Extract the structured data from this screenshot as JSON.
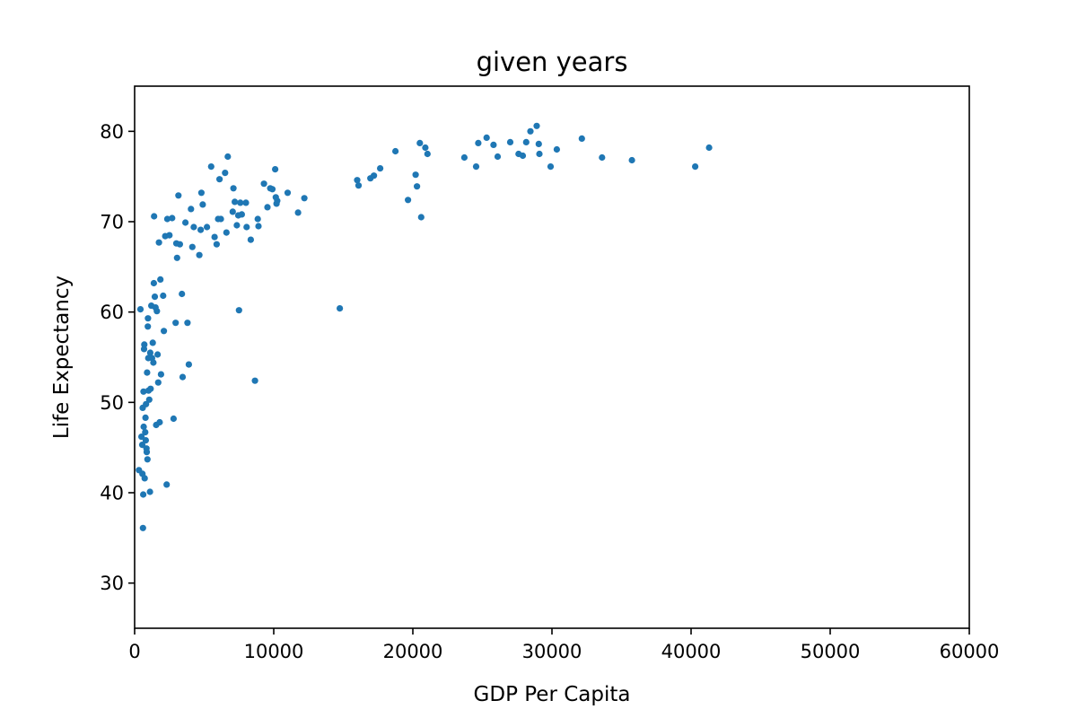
{
  "chart_data": {
    "type": "scatter",
    "title": "given years",
    "xlabel": "GDP Per Capita",
    "ylabel": "Life Expectancy",
    "xlim": [
      0,
      60000
    ],
    "ylim": [
      25,
      85
    ],
    "xticks": [
      0,
      10000,
      20000,
      30000,
      40000,
      50000,
      60000
    ],
    "xtick_labels": [
      "0",
      "10000",
      "20000",
      "30000",
      "40000",
      "50000",
      "60000"
    ],
    "yticks": [
      30,
      40,
      50,
      60,
      70,
      80
    ],
    "ytick_labels": [
      "30",
      "40",
      "50",
      "60",
      "70",
      "80"
    ],
    "grid": false,
    "legend": false,
    "point_color": "#1f77b4",
    "series": [
      {
        "points": [
          [
            310,
            42.5
          ],
          [
            420,
            60.3
          ],
          [
            490,
            46.2
          ],
          [
            550,
            45.3
          ],
          [
            560,
            42.1
          ],
          [
            580,
            49.4
          ],
          [
            600,
            36.1
          ],
          [
            620,
            39.8
          ],
          [
            640,
            51.2
          ],
          [
            650,
            47.3
          ],
          [
            680,
            55.9
          ],
          [
            700,
            56.4
          ],
          [
            720,
            41.6
          ],
          [
            760,
            46.7
          ],
          [
            780,
            48.3
          ],
          [
            800,
            45.8
          ],
          [
            820,
            49.8
          ],
          [
            850,
            44.9
          ],
          [
            870,
            44.5
          ],
          [
            900,
            53.3
          ],
          [
            920,
            43.7
          ],
          [
            950,
            58.4
          ],
          [
            960,
            59.3
          ],
          [
            980,
            54.9
          ],
          [
            1000,
            51.3
          ],
          [
            1050,
            50.3
          ],
          [
            1100,
            40.1
          ],
          [
            1120,
            55.5
          ],
          [
            1150,
            51.5
          ],
          [
            1200,
            60.7
          ],
          [
            1250,
            54.9
          ],
          [
            1300,
            56.6
          ],
          [
            1350,
            54.4
          ],
          [
            1380,
            63.2
          ],
          [
            1400,
            70.6
          ],
          [
            1450,
            61.7
          ],
          [
            1500,
            60.5
          ],
          [
            1550,
            47.5
          ],
          [
            1600,
            60.1
          ],
          [
            1650,
            55.3
          ],
          [
            1700,
            52.2
          ],
          [
            1750,
            67.7
          ],
          [
            1800,
            47.8
          ],
          [
            1850,
            63.6
          ],
          [
            1900,
            53.1
          ],
          [
            2050,
            61.8
          ],
          [
            2100,
            57.9
          ],
          [
            2200,
            68.4
          ],
          [
            2300,
            40.9
          ],
          [
            2350,
            70.3
          ],
          [
            2500,
            68.5
          ],
          [
            2700,
            70.4
          ],
          [
            2800,
            48.2
          ],
          [
            2950,
            58.8
          ],
          [
            3000,
            67.6
          ],
          [
            3050,
            66.0
          ],
          [
            3150,
            72.9
          ],
          [
            3250,
            67.5
          ],
          [
            3400,
            62.0
          ],
          [
            3450,
            52.8
          ],
          [
            3650,
            69.9
          ],
          [
            3800,
            58.8
          ],
          [
            3900,
            54.2
          ],
          [
            4050,
            71.4
          ],
          [
            4150,
            67.2
          ],
          [
            4250,
            69.4
          ],
          [
            4650,
            66.3
          ],
          [
            4750,
            69.1
          ],
          [
            4800,
            73.2
          ],
          [
            4900,
            71.9
          ],
          [
            5200,
            69.4
          ],
          [
            5500,
            76.1
          ],
          [
            5750,
            68.3
          ],
          [
            5900,
            67.5
          ],
          [
            6000,
            70.3
          ],
          [
            6100,
            74.7
          ],
          [
            6200,
            70.3
          ],
          [
            6500,
            75.4
          ],
          [
            6600,
            68.8
          ],
          [
            6700,
            77.2
          ],
          [
            7050,
            71.1
          ],
          [
            7100,
            73.7
          ],
          [
            7200,
            72.2
          ],
          [
            7350,
            69.6
          ],
          [
            7450,
            70.7
          ],
          [
            7500,
            60.2
          ],
          [
            7600,
            72.1
          ],
          [
            7700,
            70.8
          ],
          [
            8000,
            72.1
          ],
          [
            8050,
            69.4
          ],
          [
            8350,
            68.0
          ],
          [
            8650,
            52.4
          ],
          [
            8850,
            70.3
          ],
          [
            8900,
            69.5
          ],
          [
            9300,
            74.2
          ],
          [
            9550,
            71.6
          ],
          [
            9750,
            73.7
          ],
          [
            9900,
            73.6
          ],
          [
            10100,
            75.8
          ],
          [
            10150,
            72.7
          ],
          [
            10200,
            72.0
          ],
          [
            10250,
            72.3
          ],
          [
            11000,
            73.2
          ],
          [
            11750,
            71.0
          ],
          [
            12200,
            72.6
          ],
          [
            14750,
            60.4
          ],
          [
            16000,
            74.6
          ],
          [
            16100,
            74.0
          ],
          [
            16950,
            74.8
          ],
          [
            17200,
            75.1
          ],
          [
            17650,
            75.9
          ],
          [
            18750,
            77.8
          ],
          [
            19650,
            72.4
          ],
          [
            20200,
            75.2
          ],
          [
            20300,
            73.9
          ],
          [
            20500,
            78.7
          ],
          [
            20600,
            70.5
          ],
          [
            20900,
            78.2
          ],
          [
            21050,
            77.5
          ],
          [
            23700,
            77.1
          ],
          [
            24550,
            76.1
          ],
          [
            24700,
            78.7
          ],
          [
            25300,
            79.3
          ],
          [
            25800,
            78.5
          ],
          [
            26100,
            77.2
          ],
          [
            27000,
            78.8
          ],
          [
            27600,
            77.5
          ],
          [
            27900,
            77.3
          ],
          [
            28150,
            78.8
          ],
          [
            28450,
            80.0
          ],
          [
            28900,
            80.6
          ],
          [
            29050,
            78.6
          ],
          [
            29100,
            77.5
          ],
          [
            29900,
            76.1
          ],
          [
            30350,
            78.0
          ],
          [
            32150,
            79.2
          ],
          [
            33600,
            77.1
          ],
          [
            35750,
            76.8
          ],
          [
            40300,
            76.1
          ],
          [
            41300,
            78.2
          ]
        ]
      }
    ]
  }
}
